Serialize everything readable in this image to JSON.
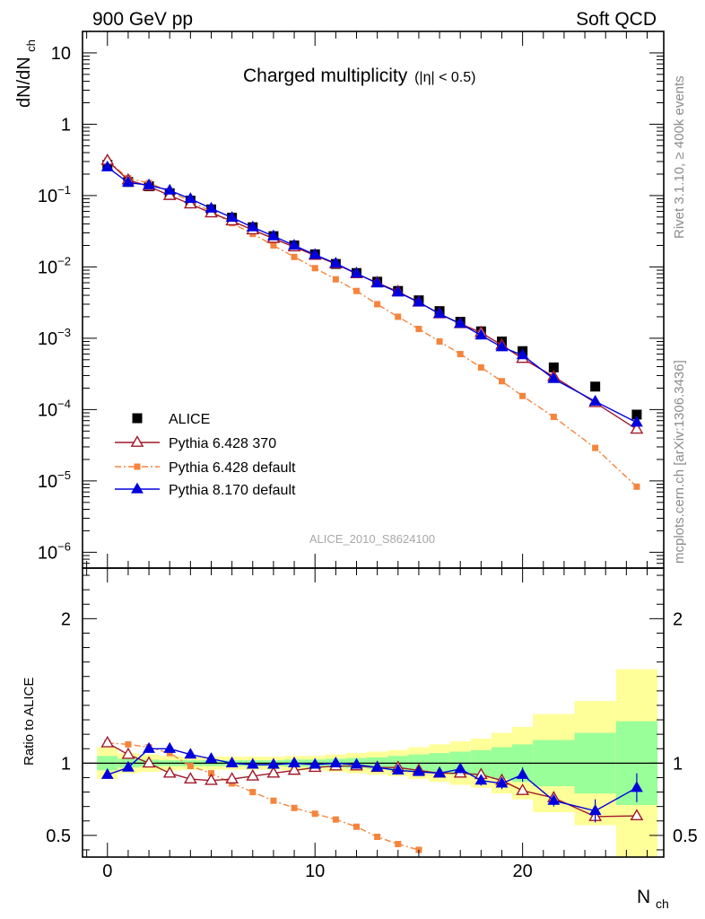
{
  "header": {
    "left": "900 GeV pp",
    "right": "Soft QCD"
  },
  "side_labels": {
    "top": "Rivet 3.1.10, ≥ 400k events",
    "bottom": "mcplots.cern.ch [arXiv:1306.3436]"
  },
  "watermark": "ALICE_2010_S8624100",
  "colors": {
    "alice": "#000000",
    "p6_370": "#a0182a",
    "p6_default": "#f5843c",
    "p8": "#0000dd",
    "band_inner": "#99ff99",
    "band_outer": "#ffff99"
  },
  "chart_data": [
    {
      "type": "line",
      "title": "Charged multiplicity",
      "title_cut": "(|η| < 0.5)",
      "ylabel": "dN/dN",
      "ylabel_sub": "ch",
      "yscale": "log",
      "ylim": [
        6e-07,
        20
      ],
      "xlim": [
        -1.2,
        26.8
      ],
      "yticks": [
        {
          "v": 10,
          "label": "10"
        },
        {
          "v": 1,
          "label": "1"
        },
        {
          "v": 0.1,
          "label": "10",
          "exp": "−1"
        },
        {
          "v": 0.01,
          "label": "10",
          "exp": "−2"
        },
        {
          "v": 0.001,
          "label": "10",
          "exp": "−3"
        },
        {
          "v": 0.0001,
          "label": "10",
          "exp": "−4"
        },
        {
          "v": 1e-05,
          "label": "10",
          "exp": "−5"
        },
        {
          "v": 1e-06,
          "label": "10",
          "exp": "−6"
        }
      ],
      "legend": [
        "ALICE",
        "Pythia 6.428 370",
        "Pythia 6.428 default",
        "Pythia 8.170 default"
      ],
      "series": [
        {
          "name": "ALICE",
          "x": [
            0,
            1,
            2,
            3,
            4,
            5,
            6,
            7,
            8,
            9,
            10,
            11,
            12,
            13,
            14,
            15,
            16,
            17,
            18,
            19,
            20,
            21.5,
            23.5,
            25.5
          ],
          "values": [
            0.27,
            0.155,
            0.135,
            0.108,
            0.085,
            0.064,
            0.049,
            0.036,
            0.027,
            0.02,
            0.015,
            0.011,
            0.0082,
            0.0062,
            0.0046,
            0.0034,
            0.0024,
            0.0017,
            0.00125,
            0.0009,
            0.00066,
            0.00039,
            0.00021,
            8.5e-05
          ]
        },
        {
          "name": "Pythia 6.428 370",
          "x": [
            0,
            1,
            2,
            3,
            4,
            5,
            6,
            7,
            8,
            9,
            10,
            11,
            12,
            13,
            14,
            15,
            16,
            17,
            18,
            19,
            20,
            21.5,
            23.5,
            25.5
          ],
          "values": [
            0.31,
            0.165,
            0.135,
            0.1,
            0.076,
            0.057,
            0.044,
            0.033,
            0.025,
            0.019,
            0.0145,
            0.011,
            0.008,
            0.006,
            0.0045,
            0.0032,
            0.0022,
            0.0016,
            0.0012,
            0.0008,
            0.00052,
            0.00029,
            0.000125,
            5.3e-05
          ]
        },
        {
          "name": "Pythia 6.428 default",
          "x": [
            0,
            1,
            2,
            3,
            4,
            5,
            6,
            7,
            8,
            9,
            10,
            11,
            12,
            13,
            14,
            15,
            16,
            17,
            18,
            19,
            20,
            21.5,
            23.5,
            25.5
          ],
          "values": [
            0.31,
            0.175,
            0.15,
            0.115,
            0.083,
            0.06,
            0.041,
            0.029,
            0.02,
            0.0138,
            0.0096,
            0.0067,
            0.0046,
            0.003,
            0.002,
            0.00135,
            0.0009,
            0.0006,
            0.00039,
            0.00025,
            0.000155,
            7.9e-05,
            2.9e-05,
            8.3e-06
          ]
        },
        {
          "name": "Pythia 8.170 default",
          "x": [
            0,
            1,
            2,
            3,
            4,
            5,
            6,
            7,
            8,
            9,
            10,
            11,
            12,
            13,
            14,
            15,
            16,
            17,
            18,
            19,
            20,
            21.5,
            23.5,
            25.5
          ],
          "values": [
            0.25,
            0.152,
            0.14,
            0.118,
            0.09,
            0.066,
            0.049,
            0.036,
            0.027,
            0.02,
            0.0148,
            0.0112,
            0.0081,
            0.0059,
            0.0044,
            0.0032,
            0.0022,
            0.0016,
            0.0011,
            0.00075,
            0.00058,
            0.00027,
            0.00013,
            6.6e-05
          ]
        }
      ]
    },
    {
      "type": "line",
      "ylabel": "Ratio to ALICE",
      "xlabel": "N",
      "xlabel_sub": "ch",
      "ylim": [
        0.35,
        2.35
      ],
      "xlim": [
        -1.2,
        26.8
      ],
      "xticks": [
        {
          "v": 0,
          "label": "0"
        },
        {
          "v": 10,
          "label": "10"
        },
        {
          "v": 20,
          "label": "20"
        }
      ],
      "yticks": [
        {
          "v": 0.5,
          "label": "0.5"
        },
        {
          "v": 1,
          "label": "1"
        },
        {
          "v": 2,
          "label": "2"
        }
      ],
      "uncertainty_bands": [
        {
          "x0": -0.5,
          "x1": 0.5,
          "inner": [
            0.95,
            1.05
          ],
          "outer": [
            0.89,
            1.11
          ]
        },
        {
          "x0": 0.5,
          "x1": 1.5,
          "inner": [
            0.97,
            1.03
          ],
          "outer": [
            0.93,
            1.07
          ]
        },
        {
          "x0": 1.5,
          "x1": 2.5,
          "inner": [
            0.975,
            1.025
          ],
          "outer": [
            0.94,
            1.06
          ]
        },
        {
          "x0": 2.5,
          "x1": 3.5,
          "inner": [
            0.98,
            1.02
          ],
          "outer": [
            0.95,
            1.05
          ]
        },
        {
          "x0": 3.5,
          "x1": 4.5,
          "inner": [
            0.98,
            1.02
          ],
          "outer": [
            0.955,
            1.045
          ]
        },
        {
          "x0": 4.5,
          "x1": 5.5,
          "inner": [
            0.98,
            1.02
          ],
          "outer": [
            0.955,
            1.045
          ]
        },
        {
          "x0": 5.5,
          "x1": 6.5,
          "inner": [
            0.98,
            1.02
          ],
          "outer": [
            0.955,
            1.045
          ]
        },
        {
          "x0": 6.5,
          "x1": 7.5,
          "inner": [
            0.98,
            1.02
          ],
          "outer": [
            0.955,
            1.045
          ]
        },
        {
          "x0": 7.5,
          "x1": 8.5,
          "inner": [
            0.98,
            1.02
          ],
          "outer": [
            0.955,
            1.045
          ]
        },
        {
          "x0": 8.5,
          "x1": 9.5,
          "inner": [
            0.975,
            1.025
          ],
          "outer": [
            0.95,
            1.05
          ]
        },
        {
          "x0": 9.5,
          "x1": 10.5,
          "inner": [
            0.975,
            1.025
          ],
          "outer": [
            0.95,
            1.05
          ]
        },
        {
          "x0": 10.5,
          "x1": 11.5,
          "inner": [
            0.97,
            1.03
          ],
          "outer": [
            0.94,
            1.06
          ]
        },
        {
          "x0": 11.5,
          "x1": 12.5,
          "inner": [
            0.965,
            1.035
          ],
          "outer": [
            0.93,
            1.07
          ]
        },
        {
          "x0": 12.5,
          "x1": 13.5,
          "inner": [
            0.96,
            1.04
          ],
          "outer": [
            0.92,
            1.08
          ]
        },
        {
          "x0": 13.5,
          "x1": 14.5,
          "inner": [
            0.95,
            1.05
          ],
          "outer": [
            0.91,
            1.09
          ]
        },
        {
          "x0": 14.5,
          "x1": 15.5,
          "inner": [
            0.94,
            1.06
          ],
          "outer": [
            0.89,
            1.11
          ]
        },
        {
          "x0": 15.5,
          "x1": 16.5,
          "inner": [
            0.93,
            1.07
          ],
          "outer": [
            0.87,
            1.13
          ]
        },
        {
          "x0": 16.5,
          "x1": 17.5,
          "inner": [
            0.92,
            1.08
          ],
          "outer": [
            0.85,
            1.15
          ]
        },
        {
          "x0": 17.5,
          "x1": 18.5,
          "inner": [
            0.91,
            1.09
          ],
          "outer": [
            0.83,
            1.17
          ]
        },
        {
          "x0": 18.5,
          "x1": 19.5,
          "inner": [
            0.89,
            1.11
          ],
          "outer": [
            0.79,
            1.21
          ]
        },
        {
          "x0": 19.5,
          "x1": 20.5,
          "inner": [
            0.87,
            1.13
          ],
          "outer": [
            0.75,
            1.25
          ]
        },
        {
          "x0": 20.5,
          "x1": 22.5,
          "inner": [
            0.84,
            1.16
          ],
          "outer": [
            0.66,
            1.34
          ]
        },
        {
          "x0": 22.5,
          "x1": 24.5,
          "inner": [
            0.79,
            1.21
          ],
          "outer": [
            0.57,
            1.43
          ]
        },
        {
          "x0": 24.5,
          "x1": 26.5,
          "inner": [
            0.71,
            1.29
          ],
          "outer": [
            0.35,
            1.65
          ]
        }
      ],
      "series": [
        {
          "name": "Pythia 6.428 370",
          "x": [
            0,
            1,
            2,
            3,
            4,
            5,
            6,
            7,
            8,
            9,
            10,
            11,
            12,
            13,
            14,
            15,
            16,
            17,
            18,
            19,
            20,
            21.5,
            23.5,
            25.5
          ],
          "values": [
            1.14,
            1.06,
            1.0,
            0.93,
            0.89,
            0.88,
            0.89,
            0.91,
            0.93,
            0.95,
            0.97,
            0.98,
            0.98,
            0.97,
            0.97,
            0.95,
            0.93,
            0.93,
            0.92,
            0.88,
            0.81,
            0.76,
            0.63,
            0.635
          ],
          "errors": [
            0,
            0,
            0,
            0,
            0,
            0,
            0,
            0,
            0,
            0,
            0,
            0,
            0,
            0,
            0,
            0,
            0,
            0,
            0,
            0,
            0,
            0,
            0.02,
            0.03
          ]
        },
        {
          "name": "Pythia 6.428 default",
          "x": [
            0,
            1,
            2,
            3,
            4,
            5,
            6,
            7,
            8,
            9,
            10,
            11,
            12,
            13,
            14,
            15
          ],
          "values": [
            1.14,
            1.13,
            1.11,
            1.07,
            0.98,
            0.93,
            0.86,
            0.8,
            0.74,
            0.69,
            0.65,
            0.61,
            0.56,
            0.49,
            0.44,
            0.4
          ]
        },
        {
          "name": "Pythia 8.170 default",
          "x": [
            0,
            1,
            2,
            3,
            4,
            5,
            6,
            7,
            8,
            9,
            10,
            11,
            12,
            13,
            14,
            15,
            16,
            17,
            18,
            19,
            20,
            21.5,
            23.5,
            25.5
          ],
          "values": [
            0.92,
            0.97,
            1.1,
            1.1,
            1.06,
            1.03,
            1.0,
            0.99,
            0.99,
            1.0,
            0.99,
            1.0,
            0.99,
            0.97,
            0.95,
            0.94,
            0.93,
            0.96,
            0.88,
            0.86,
            0.92,
            0.74,
            0.67,
            0.83
          ],
          "errors": [
            0,
            0,
            0,
            0,
            0,
            0,
            0,
            0,
            0,
            0,
            0,
            0,
            0,
            0,
            0.015,
            0.02,
            0.025,
            0.03,
            0.035,
            0.04,
            0.05,
            0.04,
            0.08,
            0.1
          ]
        }
      ]
    }
  ]
}
